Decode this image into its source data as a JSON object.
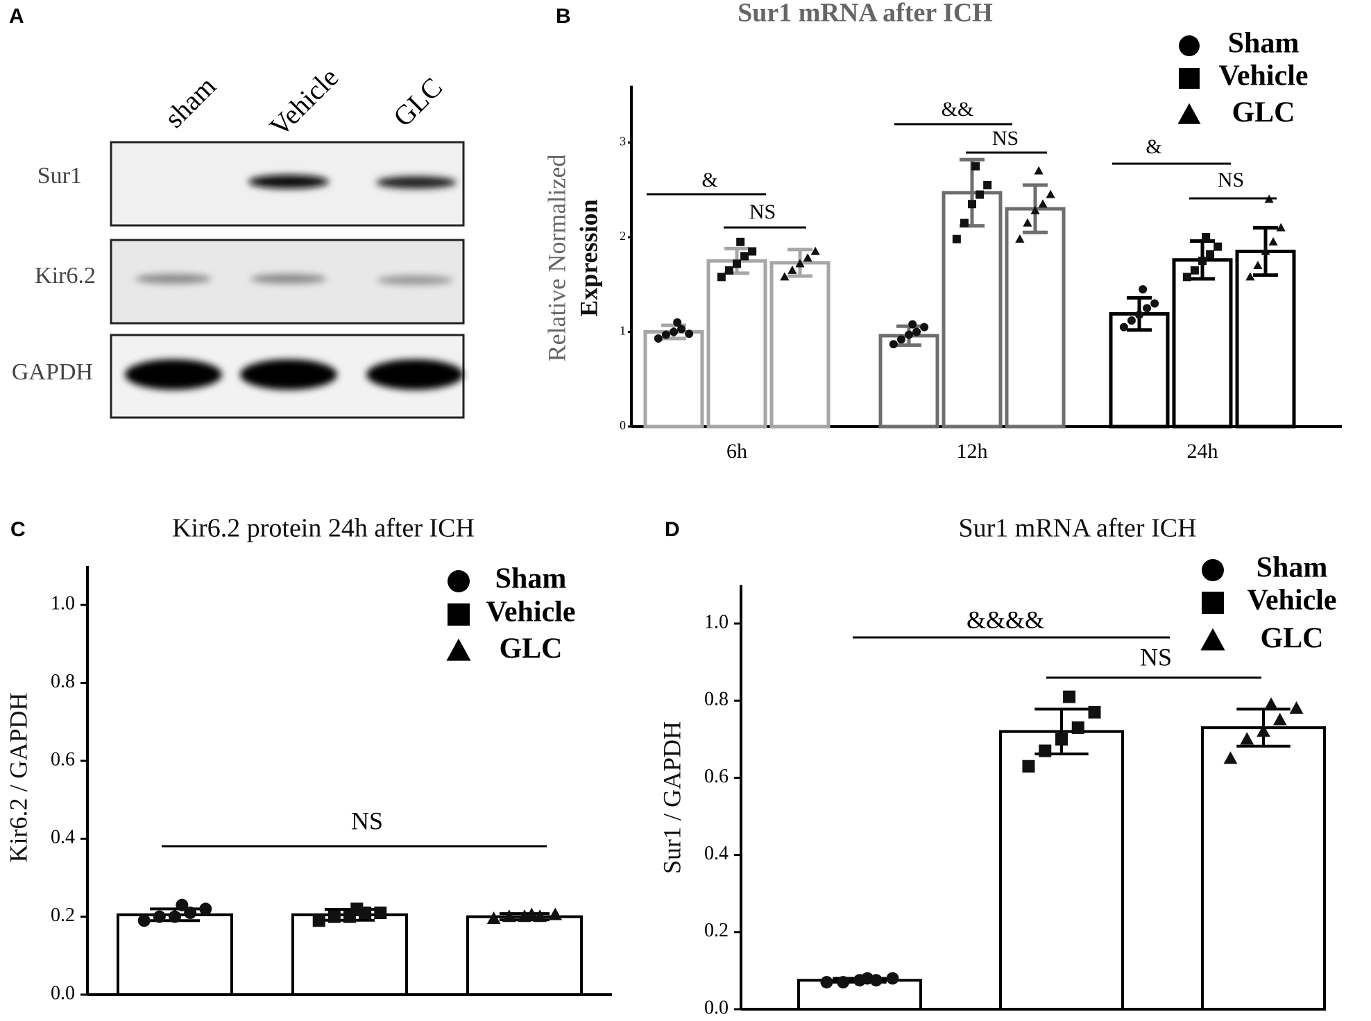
{
  "blot": {
    "label": "A",
    "lanes": [
      "sham",
      "Vehicle",
      "GLC"
    ],
    "rows": [
      "Sur1",
      "Kir6.2",
      "GAPDH"
    ]
  },
  "chart_data": [
    {
      "type": "bar",
      "panel": "B",
      "title": "Sur1 mRNA after ICH",
      "ylabel": [
        "Relative Normalized",
        "Expression"
      ],
      "categories": [
        "6h",
        "12h",
        "24h"
      ],
      "category_colors": [
        "#a6a6a6",
        "#6e6e6e",
        "#000000"
      ],
      "ylim": [
        0,
        3.6
      ],
      "yticks": [
        0,
        1,
        2,
        3
      ],
      "series": [
        {
          "name": "Sham",
          "marker": "circle",
          "values": [
            1.0,
            0.96,
            1.19
          ],
          "errors": [
            0.07,
            0.1,
            0.17
          ],
          "points": [
            [
              0.93,
              0.97,
              1.0,
              1.03,
              0.98,
              1.1
            ],
            [
              0.87,
              0.92,
              0.97,
              1.0,
              1.05,
              1.08
            ],
            [
              1.05,
              1.12,
              1.18,
              1.25,
              1.3,
              1.45
            ]
          ]
        },
        {
          "name": "Vehicle",
          "marker": "square",
          "values": [
            1.75,
            2.47,
            1.76
          ],
          "errors": [
            0.13,
            0.35,
            0.2
          ],
          "points": [
            [
              1.58,
              1.65,
              1.72,
              1.8,
              1.85,
              1.95
            ],
            [
              1.98,
              2.15,
              2.35,
              2.45,
              2.55,
              2.75
            ],
            [
              1.58,
              1.65,
              1.75,
              1.82,
              1.9,
              2.0
            ]
          ]
        },
        {
          "name": "GLC",
          "marker": "triangle",
          "values": [
            1.73,
            2.3,
            1.85
          ],
          "errors": [
            0.14,
            0.25,
            0.25
          ],
          "points": [
            [
              1.58,
              1.65,
              1.72,
              1.78,
              1.85
            ],
            [
              1.98,
              2.15,
              2.28,
              2.35,
              2.45,
              2.7
            ],
            [
              1.58,
              1.7,
              1.85,
              1.95,
              2.1,
              2.4
            ]
          ]
        }
      ],
      "annotations": [
        "&",
        "NS",
        "&&",
        "NS",
        "&",
        "NS"
      ]
    },
    {
      "type": "bar",
      "panel": "C",
      "title": "Kir6.2 protein 24h after ICH",
      "ylabel": [
        "Kir6.2 / GAPDH"
      ],
      "color": "#000000",
      "ylim": [
        0,
        1.1
      ],
      "yticks": [
        {
          "value": 0,
          "label": "0.0"
        },
        {
          "value": 0.2,
          "label": "0.2"
        },
        {
          "value": 0.4,
          "label": "0.4"
        },
        {
          "value": 0.6,
          "label": "0.6"
        },
        {
          "value": 0.8,
          "label": "0.8"
        },
        {
          "value": 1,
          "label": "1.0"
        }
      ],
      "series": [
        {
          "name": "Sham",
          "marker": "circle",
          "values": [
            0.205
          ],
          "errors": [
            0.015
          ],
          "points": [
            [
              0.19,
              0.2,
              0.2,
              0.21,
              0.22,
              0.23
            ]
          ]
        },
        {
          "name": "Vehicle",
          "marker": "square",
          "values": [
            0.205
          ],
          "errors": [
            0.014
          ],
          "points": [
            [
              0.19,
              0.2,
              0.2,
              0.21,
              0.21,
              0.22
            ]
          ]
        },
        {
          "name": "GLC",
          "marker": "triangle",
          "values": [
            0.2
          ],
          "errors": [
            0.008
          ],
          "points": [
            [
              0.195,
              0.2,
              0.2,
              0.2,
              0.205,
              0.205
            ]
          ]
        }
      ],
      "annotations": [
        "NS"
      ]
    },
    {
      "type": "bar",
      "panel": "D",
      "title": "Sur1 mRNA after ICH",
      "ylabel": [
        "Sur1 / GAPDH"
      ],
      "color": "#000000",
      "ylim": [
        0,
        1.1
      ],
      "yticks": [
        {
          "value": 0,
          "label": "0.0"
        },
        {
          "value": 0.2,
          "label": "0.2"
        },
        {
          "value": 0.4,
          "label": "0.4"
        },
        {
          "value": 0.6,
          "label": "0.6"
        },
        {
          "value": 0.8,
          "label": "0.8"
        },
        {
          "value": 1,
          "label": "1.0"
        }
      ],
      "series": [
        {
          "name": "Sham",
          "marker": "circle",
          "values": [
            0.075
          ],
          "errors": [
            0.005
          ],
          "points": [
            [
              0.07,
              0.07,
              0.075,
              0.075,
              0.08,
              0.08
            ]
          ]
        },
        {
          "name": "Vehicle",
          "marker": "square",
          "values": [
            0.72
          ],
          "errors": [
            0.058
          ],
          "points": [
            [
              0.63,
              0.67,
              0.7,
              0.73,
              0.77,
              0.81
            ]
          ]
        },
        {
          "name": "GLC",
          "marker": "triangle",
          "values": [
            0.73
          ],
          "errors": [
            0.048
          ],
          "points": [
            [
              0.65,
              0.7,
              0.72,
              0.75,
              0.78,
              0.79
            ]
          ]
        }
      ],
      "annotations": [
        "&&&&",
        "NS"
      ]
    }
  ]
}
